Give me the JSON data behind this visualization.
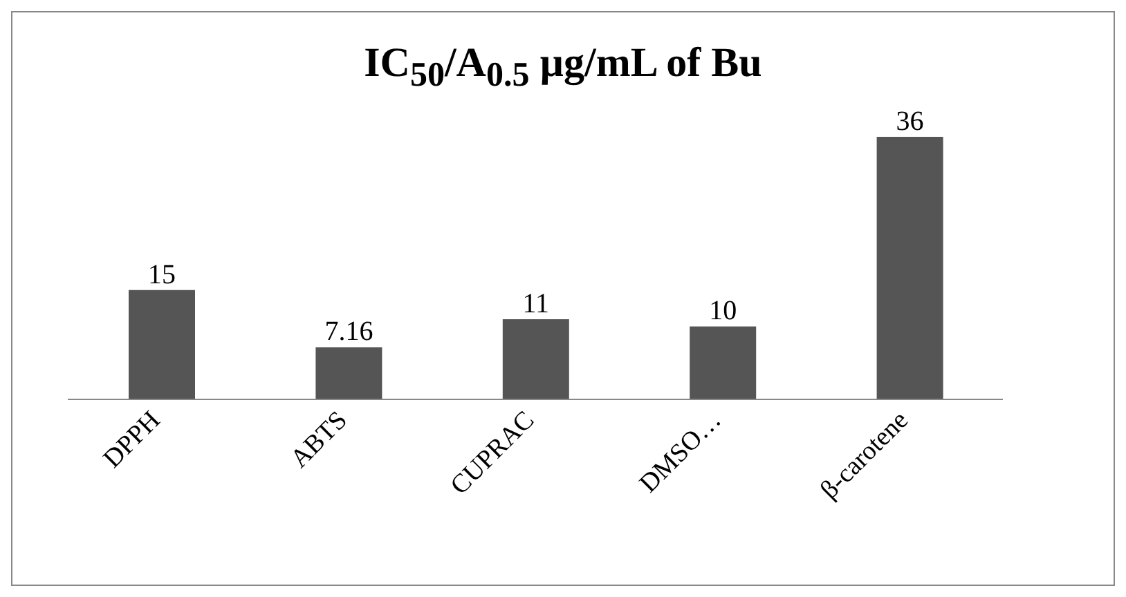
{
  "chart_data": {
    "type": "bar",
    "title": "IC$_{50}$/A$_{0.5}$ µg/mL of Bu",
    "categories": [
      "DPPH",
      "ABTS",
      "CUPRAC",
      "DMSO…",
      "β-carotene"
    ],
    "values": [
      15,
      7.16,
      11,
      10,
      36
    ],
    "color": "#555555",
    "data_labels": true
  }
}
